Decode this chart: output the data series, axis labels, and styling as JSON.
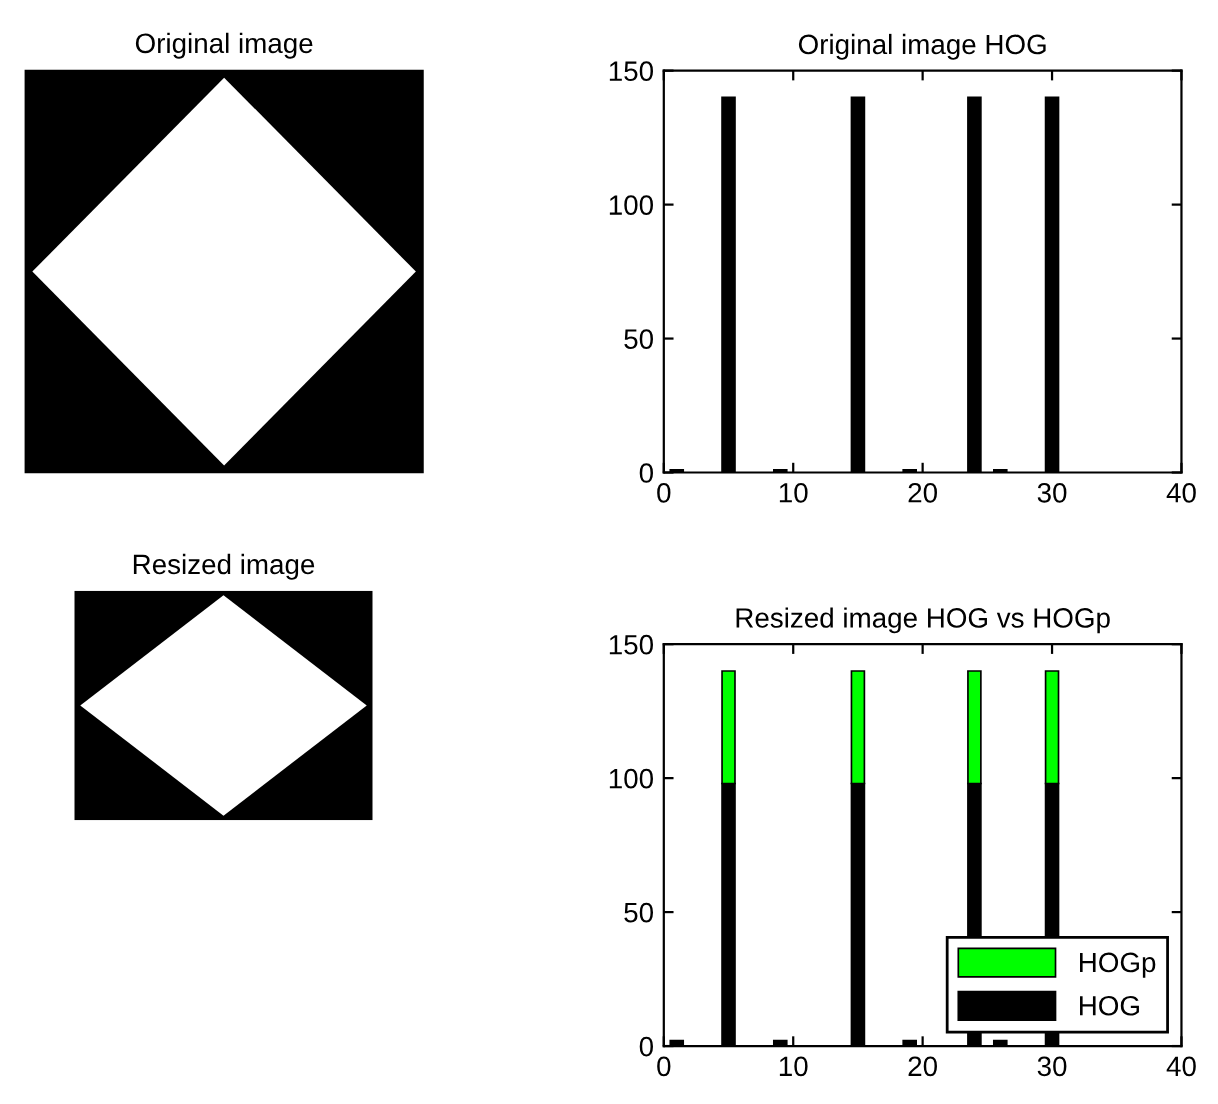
{
  "chart_data": [
    {
      "type": "other",
      "title": "Original image"
    },
    {
      "type": "bar",
      "title": "Original image HOG",
      "x": [
        1,
        5,
        9,
        15,
        19,
        24,
        26,
        30
      ],
      "series": [
        {
          "color": "#000000",
          "values": [
            1,
            140,
            1,
            140,
            1,
            140,
            1,
            140
          ]
        }
      ],
      "xlim": [
        0,
        40
      ],
      "xticks": [
        0,
        10,
        20,
        30,
        40
      ],
      "ylim": [
        0,
        150
      ],
      "yticks": [
        0,
        50,
        100,
        150
      ],
      "grid": false,
      "legend": false
    },
    {
      "type": "other",
      "title": "Resized image"
    },
    {
      "type": "bar",
      "title": "Resized image HOG vs HOGp",
      "x": [
        1,
        5,
        9,
        15,
        19,
        24,
        26,
        30
      ],
      "stacked": true,
      "series": [
        {
          "name": "HOG",
          "color": "#000000",
          "values": [
            2,
            98,
            2,
            98,
            2,
            98,
            2,
            98
          ]
        },
        {
          "name": "HOGp",
          "color": "#00ff00",
          "values": [
            null,
            42,
            null,
            42,
            null,
            42,
            null,
            42
          ]
        }
      ],
      "xlim": [
        0,
        40
      ],
      "xticks": [
        0,
        10,
        20,
        30,
        40
      ],
      "ylim": [
        0,
        150
      ],
      "yticks": [
        0,
        50,
        100,
        150
      ],
      "grid": false,
      "legend": "bottom right"
    }
  ]
}
